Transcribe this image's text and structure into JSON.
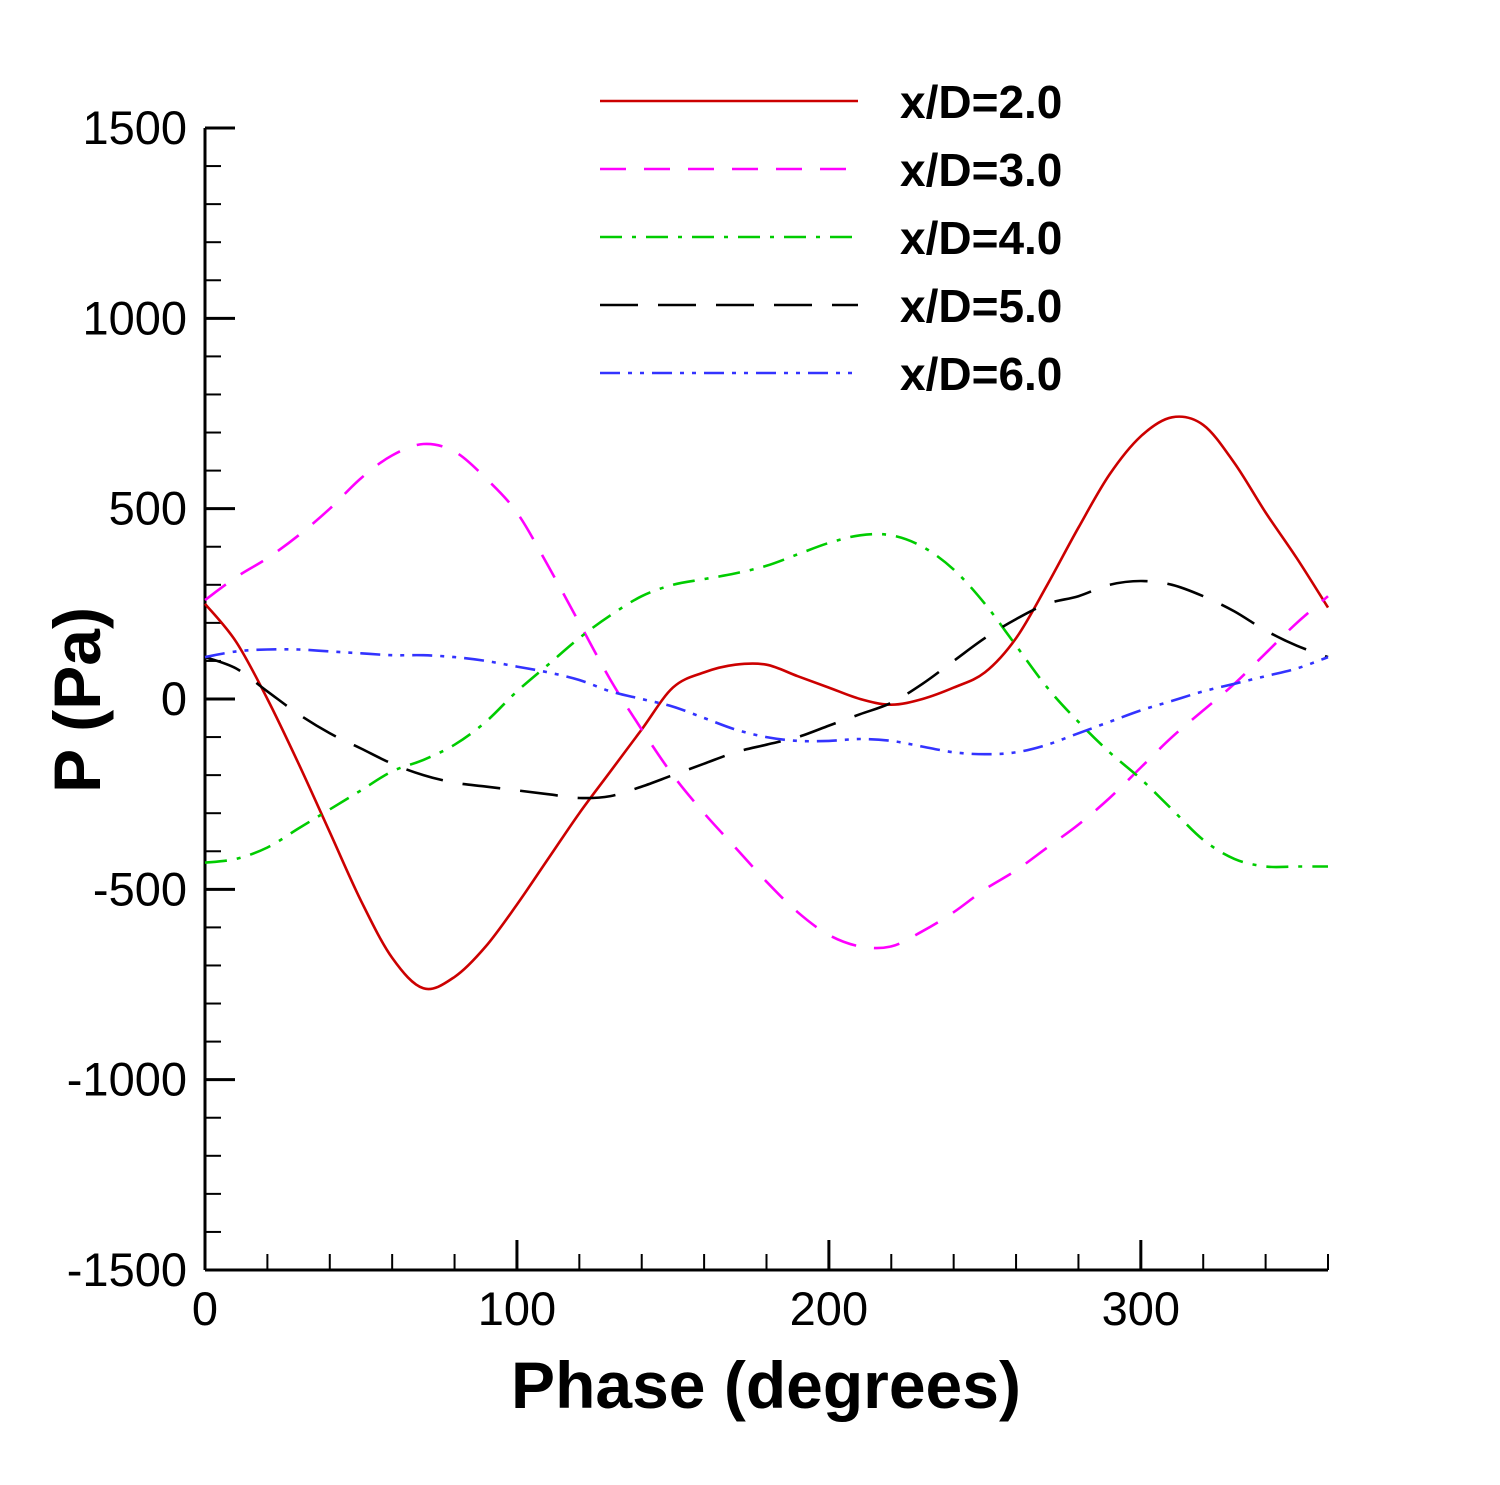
{
  "chart_data": {
    "type": "line",
    "xlabel": "Phase (degrees)",
    "ylabel": "P (Pa)",
    "xlim": [
      0,
      360
    ],
    "ylim": [
      -1500,
      1500
    ],
    "x_ticks": [
      0,
      100,
      200,
      300
    ],
    "y_ticks": [
      -1500,
      -1000,
      -500,
      0,
      500,
      1000,
      1500
    ],
    "x_tick_labels": [
      "0",
      "100",
      "200",
      "300"
    ],
    "y_tick_labels": [
      "-1500",
      "-1000",
      "-500",
      "0",
      "500",
      "1000",
      "1500"
    ],
    "grid": false,
    "legend_position": "top-right",
    "series": [
      {
        "name": "x/D=2.0",
        "color": "#cc0000",
        "dash": "solid",
        "points": [
          [
            0,
            250
          ],
          [
            10,
            150
          ],
          [
            20,
            0
          ],
          [
            30,
            -170
          ],
          [
            40,
            -350
          ],
          [
            50,
            -530
          ],
          [
            60,
            -680
          ],
          [
            70,
            -760
          ],
          [
            80,
            -730
          ],
          [
            90,
            -650
          ],
          [
            100,
            -540
          ],
          [
            110,
            -420
          ],
          [
            120,
            -300
          ],
          [
            130,
            -190
          ],
          [
            140,
            -80
          ],
          [
            150,
            30
          ],
          [
            160,
            70
          ],
          [
            170,
            90
          ],
          [
            180,
            90
          ],
          [
            190,
            60
          ],
          [
            200,
            30
          ],
          [
            210,
            0
          ],
          [
            220,
            -15
          ],
          [
            230,
            0
          ],
          [
            240,
            30
          ],
          [
            250,
            70
          ],
          [
            260,
            160
          ],
          [
            270,
            300
          ],
          [
            280,
            450
          ],
          [
            290,
            590
          ],
          [
            300,
            690
          ],
          [
            310,
            740
          ],
          [
            320,
            720
          ],
          [
            330,
            620
          ],
          [
            340,
            490
          ],
          [
            350,
            370
          ],
          [
            360,
            240
          ]
        ]
      },
      {
        "name": "x/D=3.0",
        "color": "#ff00ff",
        "dash": "dashed",
        "points": [
          [
            0,
            260
          ],
          [
            10,
            320
          ],
          [
            20,
            370
          ],
          [
            30,
            430
          ],
          [
            40,
            500
          ],
          [
            50,
            580
          ],
          [
            60,
            640
          ],
          [
            70,
            670
          ],
          [
            80,
            650
          ],
          [
            90,
            580
          ],
          [
            100,
            490
          ],
          [
            110,
            350
          ],
          [
            120,
            200
          ],
          [
            130,
            50
          ],
          [
            140,
            -80
          ],
          [
            150,
            -200
          ],
          [
            160,
            -300
          ],
          [
            170,
            -390
          ],
          [
            180,
            -480
          ],
          [
            190,
            -560
          ],
          [
            200,
            -620
          ],
          [
            210,
            -650
          ],
          [
            220,
            -650
          ],
          [
            230,
            -610
          ],
          [
            240,
            -560
          ],
          [
            250,
            -500
          ],
          [
            260,
            -450
          ],
          [
            270,
            -390
          ],
          [
            280,
            -330
          ],
          [
            290,
            -260
          ],
          [
            300,
            -180
          ],
          [
            310,
            -100
          ],
          [
            320,
            -30
          ],
          [
            330,
            40
          ],
          [
            340,
            120
          ],
          [
            350,
            200
          ],
          [
            360,
            270
          ]
        ]
      },
      {
        "name": "x/D=4.0",
        "color": "#00cc00",
        "dash": "dashdot",
        "points": [
          [
            0,
            -430
          ],
          [
            10,
            -420
          ],
          [
            20,
            -390
          ],
          [
            30,
            -340
          ],
          [
            40,
            -290
          ],
          [
            50,
            -240
          ],
          [
            60,
            -190
          ],
          [
            70,
            -160
          ],
          [
            80,
            -120
          ],
          [
            90,
            -60
          ],
          [
            100,
            20
          ],
          [
            110,
            90
          ],
          [
            120,
            160
          ],
          [
            130,
            220
          ],
          [
            140,
            270
          ],
          [
            150,
            300
          ],
          [
            160,
            315
          ],
          [
            170,
            330
          ],
          [
            180,
            350
          ],
          [
            190,
            380
          ],
          [
            200,
            410
          ],
          [
            210,
            430
          ],
          [
            220,
            430
          ],
          [
            230,
            400
          ],
          [
            240,
            340
          ],
          [
            250,
            250
          ],
          [
            260,
            140
          ],
          [
            270,
            30
          ],
          [
            280,
            -60
          ],
          [
            290,
            -140
          ],
          [
            300,
            -210
          ],
          [
            310,
            -290
          ],
          [
            320,
            -370
          ],
          [
            330,
            -420
          ],
          [
            340,
            -440
          ],
          [
            350,
            -440
          ],
          [
            360,
            -440
          ]
        ]
      },
      {
        "name": "x/D=5.0",
        "color": "#000000",
        "dash": "longdash",
        "points": [
          [
            0,
            110
          ],
          [
            10,
            80
          ],
          [
            20,
            20
          ],
          [
            30,
            -40
          ],
          [
            40,
            -90
          ],
          [
            50,
            -130
          ],
          [
            60,
            -170
          ],
          [
            70,
            -200
          ],
          [
            80,
            -220
          ],
          [
            90,
            -230
          ],
          [
            100,
            -240
          ],
          [
            110,
            -250
          ],
          [
            120,
            -260
          ],
          [
            130,
            -255
          ],
          [
            140,
            -230
          ],
          [
            150,
            -200
          ],
          [
            160,
            -170
          ],
          [
            170,
            -140
          ],
          [
            180,
            -120
          ],
          [
            190,
            -100
          ],
          [
            200,
            -70
          ],
          [
            210,
            -40
          ],
          [
            220,
            -10
          ],
          [
            230,
            40
          ],
          [
            240,
            100
          ],
          [
            250,
            160
          ],
          [
            260,
            210
          ],
          [
            270,
            250
          ],
          [
            280,
            270
          ],
          [
            290,
            300
          ],
          [
            300,
            310
          ],
          [
            310,
            300
          ],
          [
            320,
            270
          ],
          [
            330,
            230
          ],
          [
            340,
            180
          ],
          [
            350,
            140
          ],
          [
            360,
            110
          ]
        ]
      },
      {
        "name": "x/D=6.0",
        "color": "#3333ff",
        "dash": "dashdotdot",
        "points": [
          [
            0,
            110
          ],
          [
            10,
            125
          ],
          [
            20,
            130
          ],
          [
            30,
            130
          ],
          [
            40,
            125
          ],
          [
            50,
            120
          ],
          [
            60,
            115
          ],
          [
            70,
            115
          ],
          [
            80,
            110
          ],
          [
            90,
            100
          ],
          [
            100,
            85
          ],
          [
            110,
            70
          ],
          [
            120,
            50
          ],
          [
            130,
            20
          ],
          [
            140,
            0
          ],
          [
            150,
            -20
          ],
          [
            160,
            -50
          ],
          [
            170,
            -80
          ],
          [
            180,
            -100
          ],
          [
            190,
            -110
          ],
          [
            200,
            -110
          ],
          [
            210,
            -105
          ],
          [
            220,
            -110
          ],
          [
            230,
            -125
          ],
          [
            240,
            -140
          ],
          [
            250,
            -145
          ],
          [
            260,
            -140
          ],
          [
            270,
            -120
          ],
          [
            280,
            -90
          ],
          [
            290,
            -60
          ],
          [
            300,
            -30
          ],
          [
            310,
            -5
          ],
          [
            320,
            20
          ],
          [
            330,
            40
          ],
          [
            340,
            60
          ],
          [
            350,
            80
          ],
          [
            360,
            110
          ]
        ]
      }
    ]
  }
}
